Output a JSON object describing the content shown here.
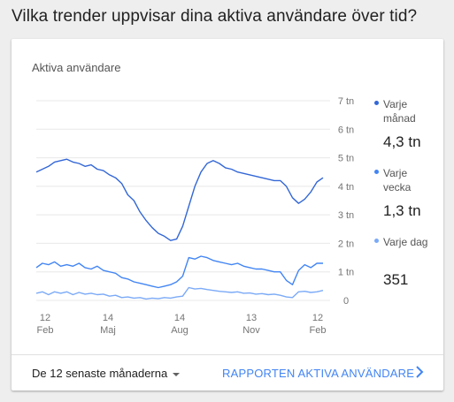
{
  "question": "Vilka trender uppvisar dina aktiva användare över tid?",
  "card": {
    "title": "Aktiva användare",
    "footer": {
      "range_label": "De 12 senaste månaderna",
      "report_link": "RAPPORTEN AKTIVA ANVÄNDARE"
    }
  },
  "legend": [
    {
      "label": "Varje månad",
      "value": "4,3 tn",
      "color": "#3367d6",
      "icon": "dot-icon"
    },
    {
      "label": "Varje vecka",
      "value": "1,3 tn",
      "color": "#4285f4",
      "icon": "dot-icon"
    },
    {
      "label": "Varje dag",
      "value": "351",
      "color": "#7baaf7",
      "icon": "dot-icon"
    }
  ],
  "chart_data": {
    "type": "line",
    "ytick_labels": [
      "7 tn",
      "6 tn",
      "5 tn",
      "4 tn",
      "3 tn",
      "2 tn",
      "1 tn",
      "0"
    ],
    "yticks": [
      7,
      6,
      5,
      4,
      3,
      2,
      1,
      0
    ],
    "ylim": [
      0,
      7
    ],
    "grid": true,
    "xticks": [
      {
        "day": "12",
        "month": "Feb"
      },
      {
        "day": "14",
        "month": "Maj"
      },
      {
        "day": "14",
        "month": "Aug"
      },
      {
        "day": "13",
        "month": "Nov"
      },
      {
        "day": "12",
        "month": "Feb"
      }
    ],
    "series": [
      {
        "name": "Varje månad",
        "color": "#3367d6",
        "values": [
          4.5,
          4.6,
          4.7,
          4.85,
          4.9,
          4.95,
          4.85,
          4.8,
          4.7,
          4.75,
          4.6,
          4.55,
          4.4,
          4.3,
          4.1,
          3.7,
          3.5,
          3.1,
          2.8,
          2.55,
          2.35,
          2.25,
          2.1,
          2.15,
          2.6,
          3.3,
          4.0,
          4.5,
          4.8,
          4.9,
          4.8,
          4.65,
          4.6,
          4.5,
          4.45,
          4.4,
          4.35,
          4.3,
          4.25,
          4.2,
          4.2,
          4.0,
          3.6,
          3.4,
          3.55,
          3.8,
          4.15,
          4.3
        ]
      },
      {
        "name": "Varje vecka",
        "color": "#4285f4",
        "values": [
          1.15,
          1.3,
          1.25,
          1.35,
          1.2,
          1.25,
          1.2,
          1.3,
          1.15,
          1.1,
          1.2,
          1.05,
          1.0,
          0.95,
          0.8,
          0.75,
          0.65,
          0.6,
          0.55,
          0.5,
          0.45,
          0.5,
          0.55,
          0.65,
          0.85,
          1.5,
          1.45,
          1.55,
          1.5,
          1.4,
          1.35,
          1.3,
          1.25,
          1.3,
          1.2,
          1.15,
          1.1,
          1.1,
          1.05,
          1.0,
          1.0,
          0.7,
          0.55,
          1.05,
          1.25,
          1.15,
          1.3,
          1.3
        ]
      },
      {
        "name": "Varje dag",
        "color": "#7baaf7",
        "values": [
          0.25,
          0.3,
          0.2,
          0.3,
          0.25,
          0.3,
          0.2,
          0.28,
          0.22,
          0.25,
          0.2,
          0.22,
          0.15,
          0.18,
          0.1,
          0.12,
          0.08,
          0.1,
          0.05,
          0.08,
          0.06,
          0.1,
          0.08,
          0.12,
          0.15,
          0.45,
          0.4,
          0.42,
          0.38,
          0.35,
          0.32,
          0.3,
          0.28,
          0.3,
          0.25,
          0.26,
          0.22,
          0.24,
          0.2,
          0.22,
          0.18,
          0.12,
          0.1,
          0.3,
          0.32,
          0.28,
          0.3,
          0.35
        ]
      }
    ]
  },
  "colors": {
    "accent": "#4285f4",
    "grid": "#e8e8e8"
  }
}
